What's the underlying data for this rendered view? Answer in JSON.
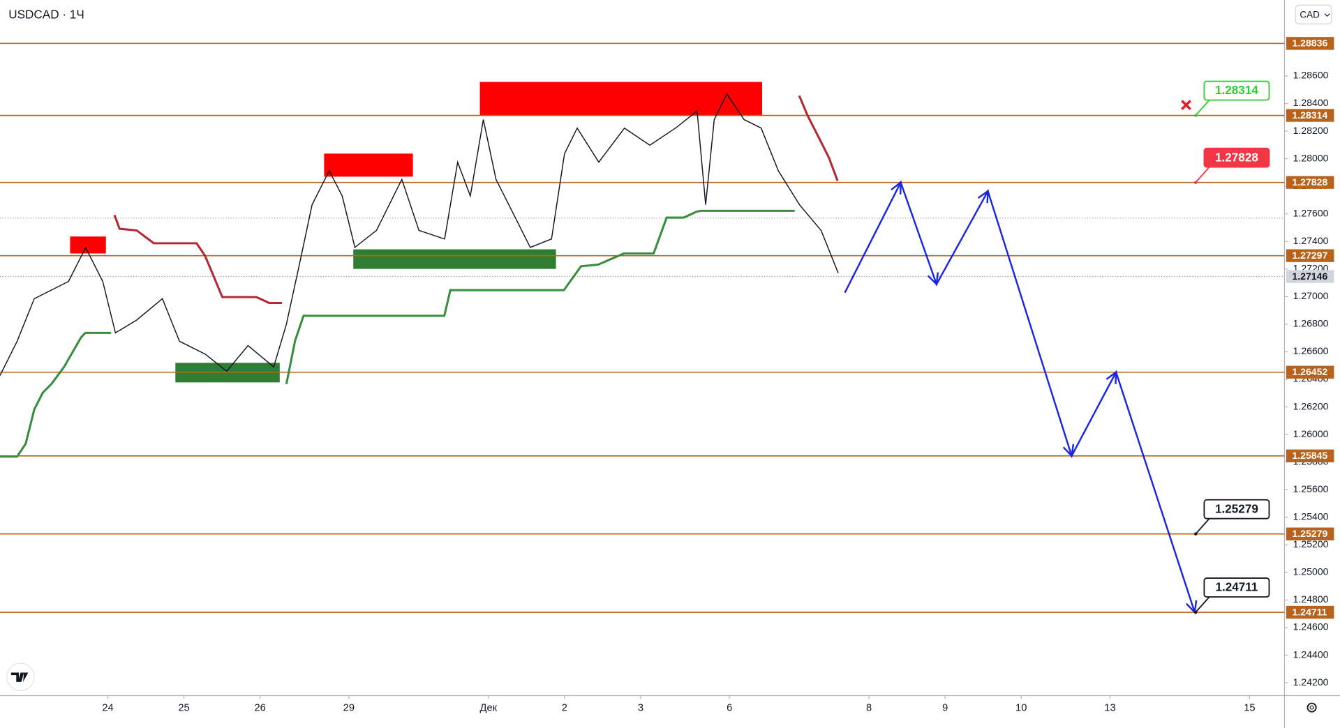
{
  "chart_data": {
    "type": "line",
    "title": "USDCAD · 1Ч",
    "currency": "CAD",
    "xlim": [
      0,
      405
    ],
    "xticks": [
      {
        "value": 34,
        "label": "24"
      },
      {
        "value": 58,
        "label": "25"
      },
      {
        "value": 82,
        "label": "26"
      },
      {
        "value": 110,
        "label": "29"
      },
      {
        "value": 154,
        "label": "Дек"
      },
      {
        "value": 178,
        "label": "2"
      },
      {
        "value": 202,
        "label": "3"
      },
      {
        "value": 230,
        "label": "6"
      },
      {
        "value": 274,
        "label": "8"
      },
      {
        "value": 298,
        "label": "9"
      },
      {
        "value": 322,
        "label": "10"
      },
      {
        "value": 350,
        "label": "13"
      },
      {
        "value": 394,
        "label": "15"
      }
    ],
    "ylim": [
      1.24107,
      1.29151
    ],
    "yticks": [
      {
        "value": 1.242,
        "label": "1.24200"
      },
      {
        "value": 1.244,
        "label": "1.24400"
      },
      {
        "value": 1.246,
        "label": "1.24600"
      },
      {
        "value": 1.248,
        "label": "1.24800"
      },
      {
        "value": 1.25,
        "label": "1.25000"
      },
      {
        "value": 1.252,
        "label": "1.25200"
      },
      {
        "value": 1.254,
        "label": "1.25400"
      },
      {
        "value": 1.256,
        "label": "1.25600"
      },
      {
        "value": 1.258,
        "label": "1.25800"
      },
      {
        "value": 1.26,
        "label": "1.26000"
      },
      {
        "value": 1.262,
        "label": "1.26200"
      },
      {
        "value": 1.264,
        "label": "1.26400"
      },
      {
        "value": 1.266,
        "label": "1.26600"
      },
      {
        "value": 1.268,
        "label": "1.26800"
      },
      {
        "value": 1.27,
        "label": "1.27000"
      },
      {
        "value": 1.272,
        "label": "1.27200"
      },
      {
        "value": 1.274,
        "label": "1.27400"
      },
      {
        "value": 1.276,
        "label": "1.27600"
      },
      {
        "value": 1.278,
        "label": "1.27800"
      },
      {
        "value": 1.28,
        "label": "1.28000"
      },
      {
        "value": 1.282,
        "label": "1.28200"
      },
      {
        "value": 1.284,
        "label": "1.28400"
      },
      {
        "value": 1.286,
        "label": "1.28600"
      }
    ],
    "grid": false,
    "price": {
      "color": "#131722",
      "x": [
        0,
        5.4,
        10.8,
        21.6,
        27,
        32.4,
        36.4,
        43.1,
        51.2,
        56.6,
        64.7,
        71.5,
        78.2,
        86.3,
        90.3,
        94.4,
        98.4,
        103.8,
        107.9,
        111.9,
        118.7,
        126.7,
        132.1,
        140.2,
        144.3,
        148.3,
        152.4,
        156.4,
        161.8,
        167.2,
        173.9,
        178,
        182,
        188.8,
        196.9,
        204.9,
        213,
        219.8,
        222.5,
        225.2,
        229.2,
        234.6,
        240,
        245.4,
        252.1,
        258.9,
        264.3
      ],
      "values": [
        1.26428,
        1.26676,
        1.26985,
        1.2711,
        1.27356,
        1.2711,
        1.26737,
        1.2683,
        1.26985,
        1.26676,
        1.26583,
        1.26459,
        1.26645,
        1.2649,
        1.268,
        1.27233,
        1.27666,
        1.27913,
        1.2773,
        1.27357,
        1.2748,
        1.2785,
        1.2748,
        1.27418,
        1.27975,
        1.2773,
        1.28284,
        1.2785,
        1.27604,
        1.27357,
        1.27418,
        1.28037,
        1.28222,
        1.27975,
        1.28222,
        1.28098,
        1.28222,
        1.28346,
        1.27666,
        1.28284,
        1.2847,
        1.28284,
        1.28222,
        1.27913,
        1.27666,
        1.2748,
        1.27171
      ]
    },
    "last_price": 1.27146,
    "reference_level": 1.2757,
    "levels": {
      "color": "#b8621b",
      "values": [
        1.28836,
        1.28314,
        1.27828,
        1.27297,
        1.26452,
        1.25845,
        1.25279,
        1.24711
      ]
    },
    "supertrend": [
      {
        "color": "#388e3c",
        "x": [
          0,
          5.4,
          8.1,
          10.8,
          13.5,
          16.2,
          20.2,
          25.6,
          26.9,
          35
        ],
        "values": [
          1.2584,
          1.2584,
          1.25933,
          1.26181,
          1.26304,
          1.26366,
          1.2649,
          1.26706,
          1.26737,
          1.26737
        ]
      },
      {
        "color": "#b22833",
        "x": [
          36.1,
          37.7,
          43.1,
          48.5,
          62,
          64.7,
          70.1,
          80.8,
          84.9,
          88.9
        ],
        "values": [
          1.27591,
          1.27492,
          1.2748,
          1.27387,
          1.27387,
          1.27294,
          1.26997,
          1.26997,
          1.26954,
          1.26954
        ]
      },
      {
        "color": "#388e3c",
        "x": [
          90.3,
          93,
          95.7,
          97,
          140.1,
          142,
          145.5,
          177.8,
          183.2,
          188.6,
          196.7,
          206.1,
          210.2,
          215.6,
          219.6,
          221,
          250.6
        ],
        "values": [
          1.26366,
          1.26676,
          1.26861,
          1.26861,
          1.26861,
          1.27047,
          1.27047,
          1.27047,
          1.2722,
          1.27232,
          1.27313,
          1.27313,
          1.27573,
          1.27573,
          1.27616,
          1.27622,
          1.27622
        ]
      },
      {
        "color": "#b22833",
        "x": [
          252,
          254.6,
          258.7,
          261.4,
          264.1
        ],
        "values": [
          1.28458,
          1.28315,
          1.2813,
          1.28006,
          1.27839
        ]
      }
    ],
    "zones": [
      {
        "color": "#ff0000",
        "x": [
          22.1,
          33.4
        ],
        "values": [
          1.27313,
          1.27436
        ]
      },
      {
        "color": "#ff0000",
        "x": [
          102.2,
          130.2
        ],
        "values": [
          1.2787,
          1.28037
        ]
      },
      {
        "color": "#ff0000",
        "x": [
          151.3,
          240.3
        ],
        "values": [
          1.28315,
          1.28557
        ]
      },
      {
        "color": "#2e7d32",
        "x": [
          55.3,
          88.2
        ],
        "values": [
          1.26378,
          1.2652
        ]
      },
      {
        "color": "#2e7d32",
        "x": [
          111.4,
          175.3
        ],
        "values": [
          1.27201,
          1.27343
        ]
      }
    ],
    "forecast": {
      "color": "#1a27e0",
      "x": [
        266.4,
        284,
        295.3,
        311.5,
        337.9,
        351.9,
        376.7
      ],
      "values": [
        1.27029,
        1.27828,
        1.2709,
        1.27765,
        1.25845,
        1.26452,
        1.24711
      ]
    },
    "stop_marker": {
      "color": "#e0202a",
      "x": 374,
      "value": 1.2839
    },
    "callouts": [
      {
        "x": 377,
        "value": 1.28314,
        "color": "#2ecc2e",
        "filled": false
      },
      {
        "x": 377,
        "value": 1.27828,
        "color": "#f23645",
        "filled": true
      },
      {
        "x": 377,
        "value": 1.25279,
        "color": "#131722",
        "filled": false
      },
      {
        "x": 377,
        "value": 1.24711,
        "color": "#131722",
        "filled": false
      }
    ]
  }
}
